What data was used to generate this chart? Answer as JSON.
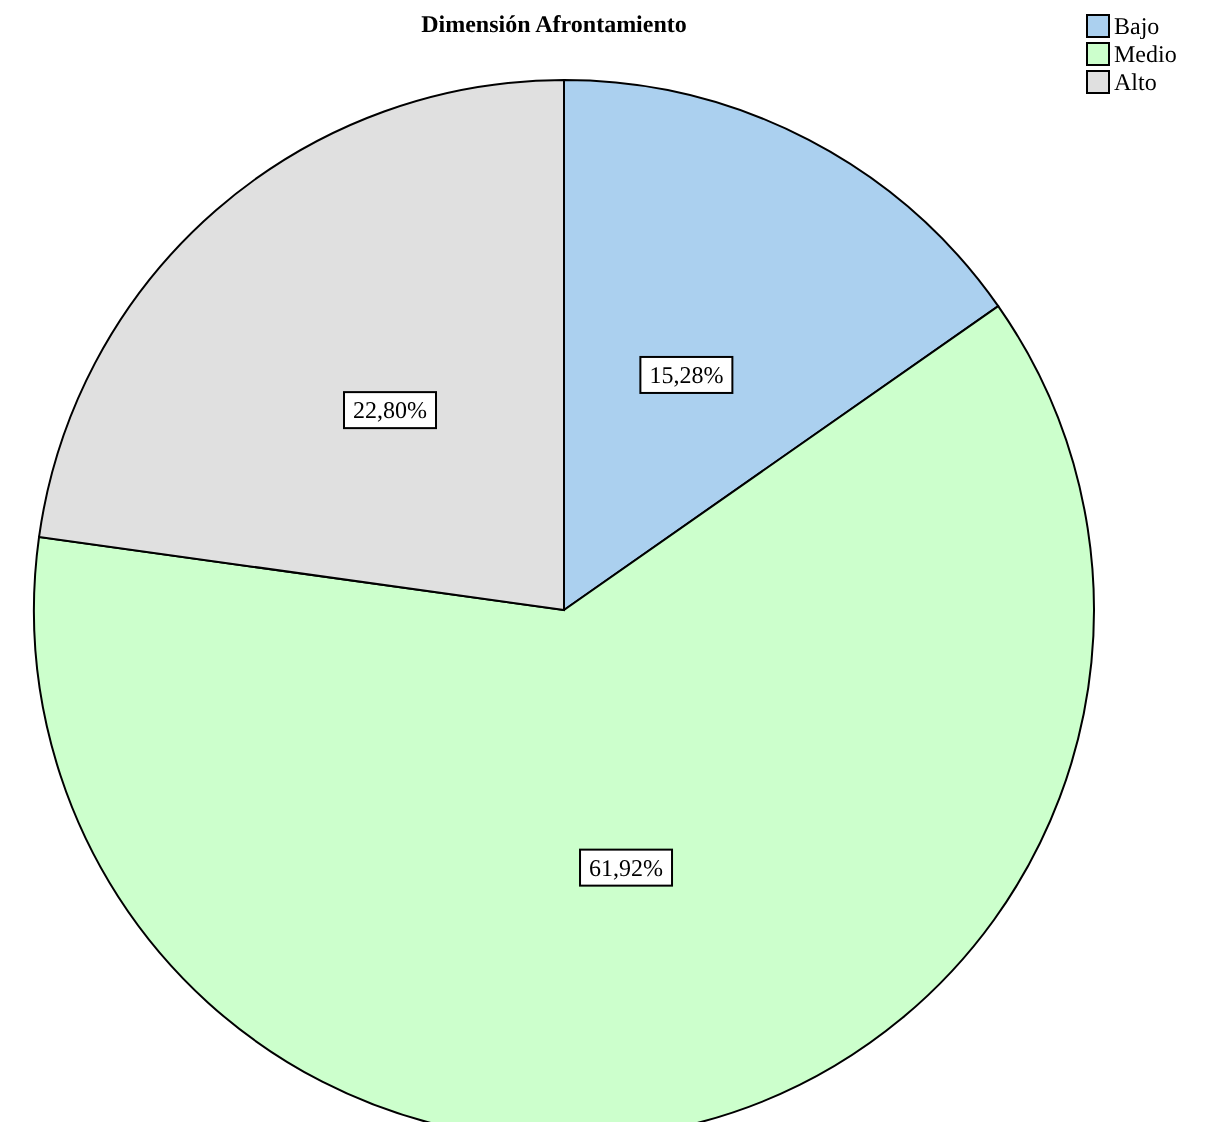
{
  "chart_data": {
    "type": "pie",
    "title": "Dimensión Afrontamiento",
    "categories": [
      "Bajo",
      "Medio",
      "Alto"
    ],
    "values": [
      15.28,
      61.92,
      22.8
    ],
    "colors": [
      "#abd0ef",
      "#ccffcc",
      "#e0e0e0"
    ],
    "value_labels": [
      "15,28%",
      "61,92%",
      "22,80%"
    ],
    "legend": "top right"
  }
}
